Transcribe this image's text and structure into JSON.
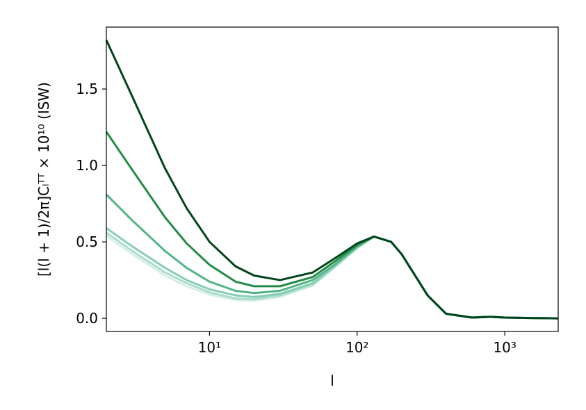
{
  "chart_data": {
    "type": "line",
    "x_label": "l",
    "y_label": "[l(l + 1)/2π]Cₗᵀᵀ × 10¹⁰ (ISW)",
    "x": [
      2,
      3,
      5,
      7,
      10,
      15,
      20,
      30,
      50,
      70,
      100,
      130,
      170,
      200,
      300,
      400,
      600,
      800,
      1000,
      1500,
      2300
    ],
    "x_log": true,
    "xlim": [
      2,
      2300
    ],
    "xticks": [
      {
        "value": 10,
        "label": "10¹"
      },
      {
        "value": 100,
        "label": "10²"
      },
      {
        "value": 1000,
        "label": "10³"
      }
    ],
    "ylim": [
      -0.086,
      1.905
    ],
    "yticks": [
      {
        "value": 0,
        "label": "0.0"
      },
      0.5,
      {
        "value": 1,
        "label": "1.0"
      },
      1.5
    ],
    "series": [
      {
        "color": "#d4eee6",
        "values": [
          0.54,
          0.42,
          0.28,
          0.21,
          0.155,
          0.12,
          0.115,
          0.14,
          0.215,
          0.33,
          0.46,
          0.535,
          0.5,
          0.42,
          0.15,
          0.03,
          0.005,
          0.01,
          0.005,
          0.002,
          0
        ]
      },
      {
        "color": "#a9dccd",
        "values": [
          0.56,
          0.44,
          0.3,
          0.23,
          0.17,
          0.13,
          0.125,
          0.15,
          0.22,
          0.335,
          0.46,
          0.535,
          0.5,
          0.42,
          0.15,
          0.03,
          0.005,
          0.01,
          0.005,
          0.002,
          0
        ]
      },
      {
        "color": "#86cdb4",
        "values": [
          0.59,
          0.47,
          0.33,
          0.25,
          0.19,
          0.15,
          0.14,
          0.16,
          0.23,
          0.34,
          0.465,
          0.535,
          0.5,
          0.42,
          0.15,
          0.03,
          0.005,
          0.01,
          0.005,
          0.002,
          0
        ]
      },
      {
        "color": "#52b486",
        "values": [
          0.81,
          0.64,
          0.44,
          0.33,
          0.24,
          0.18,
          0.165,
          0.18,
          0.25,
          0.35,
          0.47,
          0.535,
          0.5,
          0.42,
          0.15,
          0.03,
          0.005,
          0.01,
          0.005,
          0.002,
          0
        ]
      },
      {
        "color": "#238b45",
        "values": [
          1.22,
          0.97,
          0.66,
          0.49,
          0.35,
          0.24,
          0.21,
          0.21,
          0.27,
          0.37,
          0.48,
          0.535,
          0.5,
          0.42,
          0.15,
          0.03,
          0.005,
          0.01,
          0.005,
          0.002,
          0
        ]
      },
      {
        "color": "#00441b",
        "values": [
          1.82,
          1.45,
          0.98,
          0.72,
          0.5,
          0.34,
          0.28,
          0.25,
          0.3,
          0.39,
          0.49,
          0.535,
          0.5,
          0.42,
          0.15,
          0.03,
          0.005,
          0.01,
          0.005,
          0.002,
          0
        ]
      }
    ]
  }
}
